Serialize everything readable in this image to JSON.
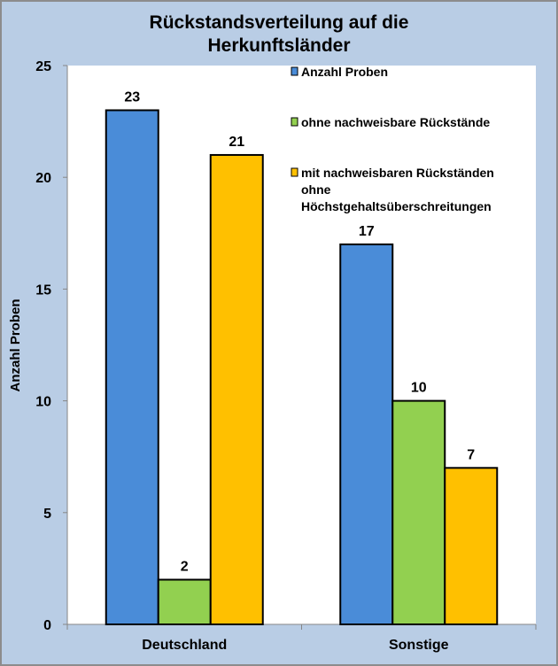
{
  "chart_data": {
    "type": "bar",
    "title": "Rückstandsverteilung auf die Herkunftsländer",
    "title_lines": [
      "Rückstandsverteilung auf die",
      "Herkunftsländer"
    ],
    "xlabel": "",
    "ylabel": "Anzahl Proben",
    "ylim": [
      0,
      25
    ],
    "yticks": [
      0,
      5,
      10,
      15,
      20,
      25
    ],
    "categories": [
      "Deutschland",
      "Sonstige"
    ],
    "series": [
      {
        "name": "Anzahl Proben",
        "color": "#4a8cd8",
        "values": [
          23,
          17
        ]
      },
      {
        "name": "ohne nachweisbare Rückstände",
        "color": "#92d050",
        "values": [
          2,
          10
        ]
      },
      {
        "name": "mit nachweisbaren Rückständen ohne Höchstgehaltsüberschreitungen",
        "name_lines": [
          "mit nachweisbaren Rückständen",
          "ohne",
          "Höchstgehaltsüberschreitungen"
        ],
        "color": "#ffc000",
        "values": [
          21,
          7
        ]
      }
    ],
    "legend_position": "top-right",
    "grid": false,
    "data_labels": true
  },
  "colors": {
    "background": "#b9cde5",
    "plot": "#ffffff"
  }
}
